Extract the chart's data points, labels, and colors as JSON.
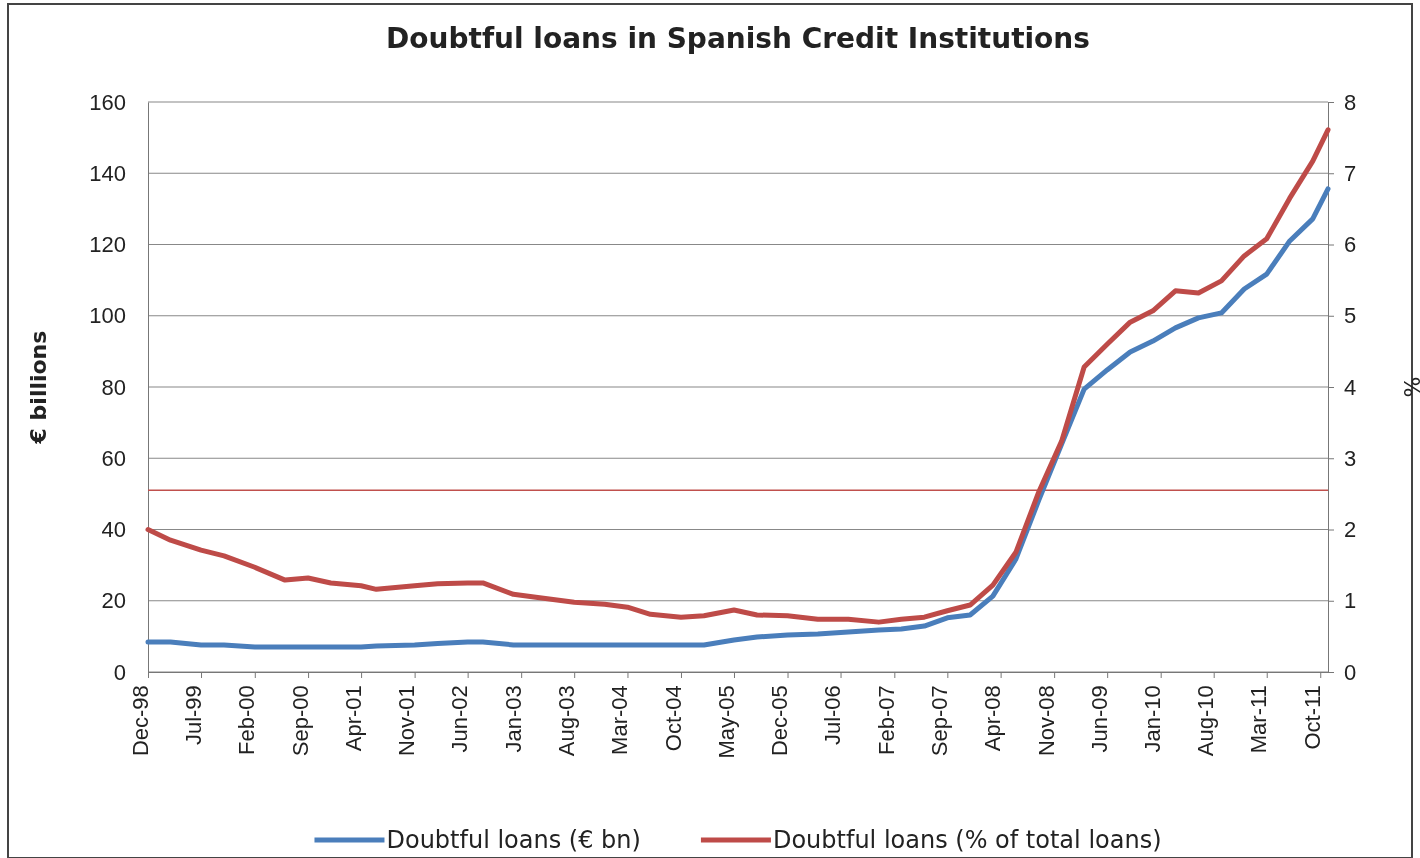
{
  "chart_data": {
    "type": "line",
    "title": "Doubtful loans in Spanish Credit Institutions",
    "ylabel": "€ billions",
    "y2label": "%",
    "x": [
      "1998-12",
      "1999-03",
      "1999-07",
      "1999-10",
      "2000-02",
      "2000-06",
      "2000-09",
      "2000-12",
      "2001-04",
      "2001-06",
      "2001-11",
      "2002-02",
      "2002-06",
      "2002-08",
      "2002-12",
      "2003-03",
      "2003-08",
      "2003-12",
      "2004-03",
      "2004-06",
      "2004-10",
      "2005-01",
      "2005-05",
      "2005-08",
      "2005-12",
      "2006-04",
      "2006-08",
      "2006-12",
      "2007-03",
      "2007-06",
      "2007-09",
      "2007-12",
      "2008-03",
      "2008-06",
      "2008-09",
      "2008-12",
      "2009-03",
      "2009-06",
      "2009-09",
      "2009-12",
      "2010-03",
      "2010-06",
      "2010-09",
      "2010-12",
      "2011-03",
      "2011-06",
      "2011-09",
      "2011-11"
    ],
    "series": [
      {
        "name": "Doubtful loans (€ bn)",
        "color": "#4a7ebb",
        "values": [
          8.4,
          8.4,
          7.6,
          7.6,
          7.0,
          7.0,
          7.0,
          7.0,
          7.0,
          7.3,
          7.6,
          8.0,
          8.4,
          8.4,
          7.6,
          7.6,
          7.6,
          7.6,
          7.6,
          7.6,
          7.6,
          7.6,
          9.0,
          9.8,
          10.4,
          10.7,
          11.2,
          11.8,
          12.1,
          12.9,
          15.2,
          16,
          21.3,
          31.7,
          48.3,
          64,
          79.4,
          84.8,
          89.8,
          92.9,
          96.6,
          99.4,
          100.8,
          107.5,
          111.7,
          121,
          127.2,
          135.6
        ]
      },
      {
        "name": "Doubtful loans (% of total loans)",
        "color": "#be4b48",
        "axis": "y2",
        "values": [
          2.0,
          1.85,
          1.71,
          1.63,
          1.47,
          1.29,
          1.32,
          1.25,
          1.21,
          1.16,
          1.21,
          1.24,
          1.25,
          1.25,
          1.09,
          1.05,
          0.98,
          0.95,
          0.91,
          0.81,
          0.77,
          0.79,
          0.87,
          0.8,
          0.79,
          0.74,
          0.74,
          0.7,
          0.74,
          0.77,
          0.86,
          0.94,
          1.22,
          1.68,
          2.53,
          3.24,
          4.28,
          4.6,
          4.91,
          5.07,
          5.35,
          5.32,
          5.49,
          5.84,
          6.08,
          6.65,
          7.17,
          7.61
        ]
      }
    ],
    "xlim": [
      "1998-12",
      "2011-11"
    ],
    "xticks": [
      {
        "value": "1998-12",
        "label": "Dec-98"
      },
      {
        "value": "1999-07",
        "label": "Jul-99"
      },
      {
        "value": "2000-02",
        "label": "Feb-00"
      },
      {
        "value": "2000-09",
        "label": "Sep-00"
      },
      {
        "value": "2001-04",
        "label": "Apr-01"
      },
      {
        "value": "2001-11",
        "label": "Nov-01"
      },
      {
        "value": "2002-06",
        "label": "Jun-02"
      },
      {
        "value": "2003-01",
        "label": "Jan-03"
      },
      {
        "value": "2003-08",
        "label": "Aug-03"
      },
      {
        "value": "2004-03",
        "label": "Mar-04"
      },
      {
        "value": "2004-10",
        "label": "Oct-04"
      },
      {
        "value": "2005-05",
        "label": "May-05"
      },
      {
        "value": "2005-12",
        "label": "Dec-05"
      },
      {
        "value": "2006-07",
        "label": "Jul-06"
      },
      {
        "value": "2007-02",
        "label": "Feb-07"
      },
      {
        "value": "2007-09",
        "label": "Sep-07"
      },
      {
        "value": "2008-04",
        "label": "Apr-08"
      },
      {
        "value": "2008-11",
        "label": "Nov-08"
      },
      {
        "value": "2009-06",
        "label": "Jun-09"
      },
      {
        "value": "2010-01",
        "label": "Jan-10"
      },
      {
        "value": "2010-08",
        "label": "Aug-10"
      },
      {
        "value": "2011-03",
        "label": "Mar-11"
      },
      {
        "value": "2011-10",
        "label": "Oct-11"
      }
    ],
    "ylim": [
      0,
      160
    ],
    "yticks": [
      0,
      20,
      40,
      60,
      80,
      100,
      120,
      140,
      160
    ],
    "y2lim": [
      0,
      8
    ],
    "y2ticks": [
      0,
      1,
      2,
      3,
      4,
      5,
      6,
      7,
      8
    ],
    "ref_lines": [
      {
        "axis": "y2",
        "value": 2.55,
        "color": "#c0504d"
      }
    ],
    "grid": "y",
    "legend": "bottom",
    "line_style": "solid",
    "marker": "none"
  }
}
